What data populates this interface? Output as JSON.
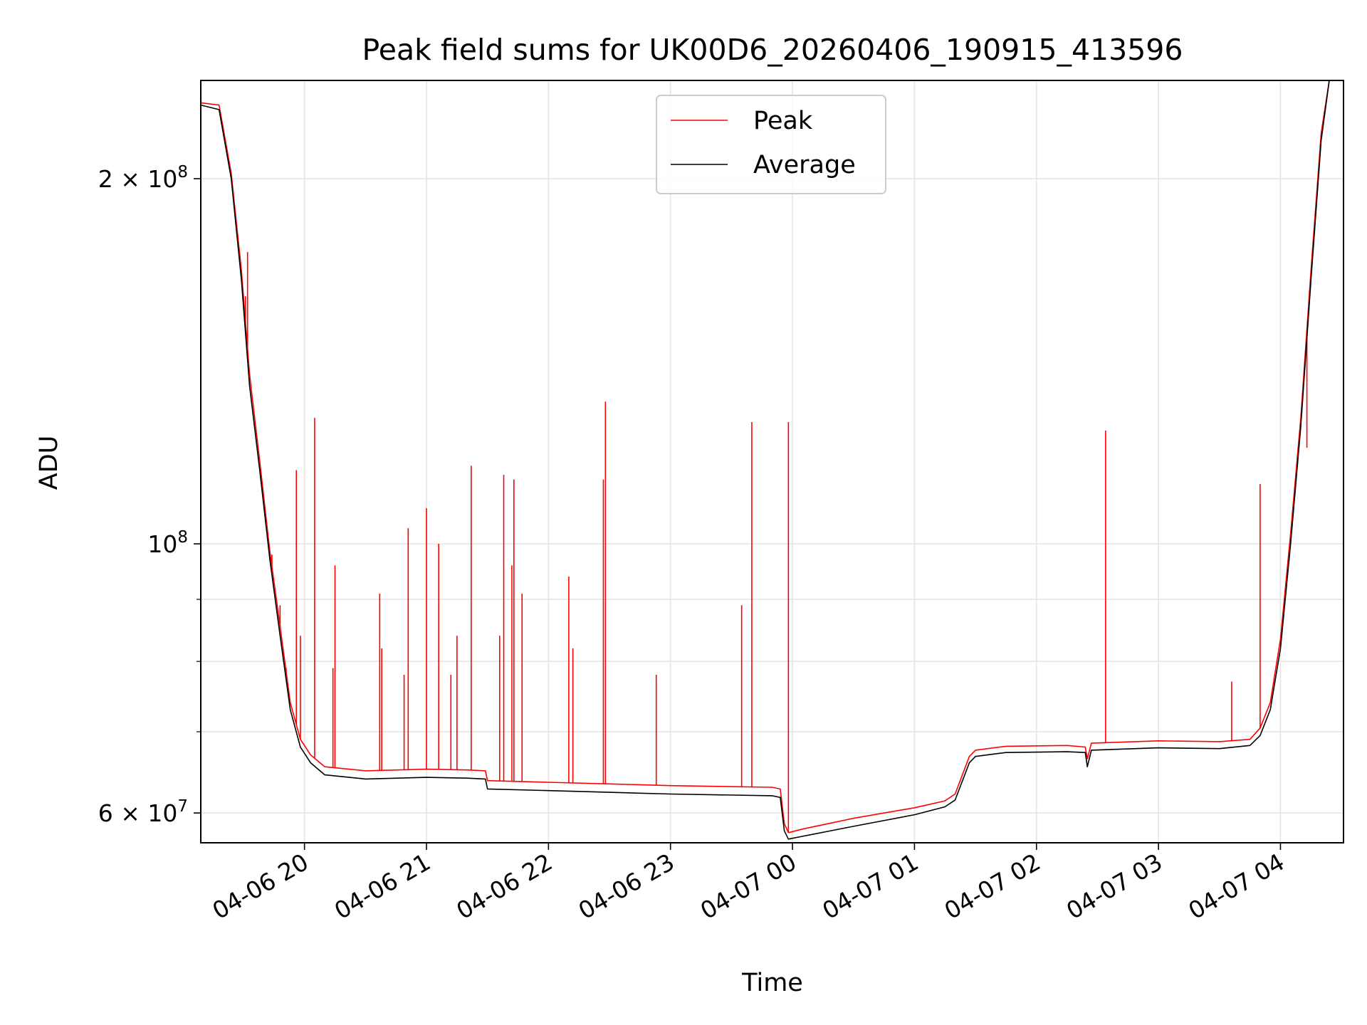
{
  "chart_data": {
    "type": "line",
    "title": "Peak field sums for UK00D6_20260406_190915_413596",
    "xlabel": "Time",
    "ylabel": "ADU",
    "yscale": "log",
    "ylim": [
      56700000,
      241000000
    ],
    "xlim": [
      "2026-04-06 19:09",
      "2026-04-07 04:31"
    ],
    "x_ticks": [
      {
        "t": "2026-04-06 20:00",
        "label": "04-06 20"
      },
      {
        "t": "2026-04-06 21:00",
        "label": "04-06 21"
      },
      {
        "t": "2026-04-06 22:00",
        "label": "04-06 22"
      },
      {
        "t": "2026-04-06 23:00",
        "label": "04-06 23"
      },
      {
        "t": "2026-04-07 00:00",
        "label": "04-07 00"
      },
      {
        "t": "2026-04-07 01:00",
        "label": "04-07 01"
      },
      {
        "t": "2026-04-07 02:00",
        "label": "04-07 02"
      },
      {
        "t": "2026-04-07 03:00",
        "label": "04-07 03"
      },
      {
        "t": "2026-04-07 04:00",
        "label": "04-07 04"
      }
    ],
    "y_major_ticks": [
      {
        "value": 60000000,
        "mantissa": "6",
        "exponent": "7"
      },
      {
        "value": 100000000,
        "mantissa": "",
        "exponent": "8"
      },
      {
        "value": 200000000,
        "mantissa": "2",
        "exponent": "8"
      }
    ],
    "y_minor_ticks": [
      70000000,
      80000000,
      90000000
    ],
    "grid": true,
    "legend_position": "upper-center",
    "series": [
      {
        "name": "Average",
        "color": "#000000",
        "points": [
          [
            "2026-04-06 19:09",
            230000000
          ],
          [
            "2026-04-06 19:18",
            228000000
          ],
          [
            "2026-04-06 19:24",
            200000000
          ],
          [
            "2026-04-06 19:29",
            165000000
          ],
          [
            "2026-04-06 19:33",
            135000000
          ],
          [
            "2026-04-06 19:38",
            115000000
          ],
          [
            "2026-04-06 19:43",
            97000000
          ],
          [
            "2026-04-06 19:48",
            84000000
          ],
          [
            "2026-04-06 19:53",
            73000000
          ],
          [
            "2026-04-06 19:58",
            68000000
          ],
          [
            "2026-04-06 20:03",
            66000000
          ],
          [
            "2026-04-06 20:10",
            64500000
          ],
          [
            "2026-04-06 20:30",
            64000000
          ],
          [
            "2026-04-06 21:00",
            64200000
          ],
          [
            "2026-04-06 21:20",
            64100000
          ],
          [
            "2026-04-06 21:29",
            64000000
          ],
          [
            "2026-04-06 21:30",
            62800000
          ],
          [
            "2026-04-06 22:00",
            62600000
          ],
          [
            "2026-04-06 22:30",
            62400000
          ],
          [
            "2026-04-06 23:00",
            62200000
          ],
          [
            "2026-04-06 23:50",
            62000000
          ],
          [
            "2026-04-06 23:54",
            61800000
          ],
          [
            "2026-04-06 23:56",
            58000000
          ],
          [
            "2026-04-06 23:58",
            57100000
          ],
          [
            "2026-04-07 00:05",
            57400000
          ],
          [
            "2026-04-07 00:30",
            58500000
          ],
          [
            "2026-04-07 01:00",
            59800000
          ],
          [
            "2026-04-07 01:15",
            60700000
          ],
          [
            "2026-04-07 01:20",
            61500000
          ],
          [
            "2026-04-07 01:27",
            66000000
          ],
          [
            "2026-04-07 01:30",
            66800000
          ],
          [
            "2026-04-07 01:45",
            67300000
          ],
          [
            "2026-04-07 02:15",
            67400000
          ],
          [
            "2026-04-07 02:24",
            67300000
          ],
          [
            "2026-04-07 02:25",
            65500000
          ],
          [
            "2026-04-07 02:27",
            67600000
          ],
          [
            "2026-04-07 03:00",
            67900000
          ],
          [
            "2026-04-07 03:30",
            67800000
          ],
          [
            "2026-04-07 03:45",
            68200000
          ],
          [
            "2026-04-07 03:50",
            69500000
          ],
          [
            "2026-04-07 03:55",
            73000000
          ],
          [
            "2026-04-07 04:00",
            82000000
          ],
          [
            "2026-04-07 04:05",
            100000000
          ],
          [
            "2026-04-07 04:10",
            125000000
          ],
          [
            "2026-04-07 04:15",
            165000000
          ],
          [
            "2026-04-07 04:20",
            215000000
          ],
          [
            "2026-04-07 04:24",
            241000000
          ]
        ]
      },
      {
        "name": "Peak",
        "color": "#ff0000",
        "points": [
          [
            "2026-04-06 19:09",
            231000000
          ],
          [
            "2026-04-06 19:18",
            230000000
          ],
          [
            "2026-04-06 19:24",
            202000000
          ],
          [
            "2026-04-06 19:29",
            168000000
          ],
          [
            "2026-04-06 19:33",
            138000000
          ],
          [
            "2026-04-06 19:38",
            117000000
          ],
          [
            "2026-04-06 19:43",
            98500000
          ],
          [
            "2026-04-06 19:48",
            85500000
          ],
          [
            "2026-04-06 19:53",
            74000000
          ],
          [
            "2026-04-06 19:58",
            69000000
          ],
          [
            "2026-04-06 20:03",
            67000000
          ],
          [
            "2026-04-06 20:10",
            65500000
          ],
          [
            "2026-04-06 20:30",
            65000000
          ],
          [
            "2026-04-06 21:00",
            65200000
          ],
          [
            "2026-04-06 21:20",
            65100000
          ],
          [
            "2026-04-06 21:29",
            65000000
          ],
          [
            "2026-04-06 21:30",
            63800000
          ],
          [
            "2026-04-06 22:00",
            63600000
          ],
          [
            "2026-04-06 22:30",
            63400000
          ],
          [
            "2026-04-06 23:00",
            63200000
          ],
          [
            "2026-04-06 23:50",
            63000000
          ],
          [
            "2026-04-06 23:54",
            62800000
          ],
          [
            "2026-04-06 23:56",
            58800000
          ],
          [
            "2026-04-06 23:58",
            57800000
          ],
          [
            "2026-04-07 00:05",
            58200000
          ],
          [
            "2026-04-07 00:30",
            59400000
          ],
          [
            "2026-04-07 01:00",
            60600000
          ],
          [
            "2026-04-07 01:15",
            61400000
          ],
          [
            "2026-04-07 01:20",
            62200000
          ],
          [
            "2026-04-07 01:27",
            66800000
          ],
          [
            "2026-04-07 01:30",
            67600000
          ],
          [
            "2026-04-07 01:45",
            68100000
          ],
          [
            "2026-04-07 02:15",
            68200000
          ],
          [
            "2026-04-07 02:24",
            68000000
          ],
          [
            "2026-04-07 02:25",
            66500000
          ],
          [
            "2026-04-07 02:27",
            68500000
          ],
          [
            "2026-04-07 03:00",
            68800000
          ],
          [
            "2026-04-07 03:30",
            68700000
          ],
          [
            "2026-04-07 03:45",
            69000000
          ],
          [
            "2026-04-07 03:50",
            70500000
          ],
          [
            "2026-04-07 03:55",
            74000000
          ],
          [
            "2026-04-07 04:00",
            83500000
          ],
          [
            "2026-04-07 04:05",
            102000000
          ],
          [
            "2026-04-07 04:10",
            127000000
          ],
          [
            "2026-04-07 04:15",
            168000000
          ],
          [
            "2026-04-07 04:20",
            218000000
          ],
          [
            "2026-04-07 04:24",
            241000000
          ]
        ],
        "spikes": [
          [
            "2026-04-06 19:31",
            160000000
          ],
          [
            "2026-04-06 19:32",
            174000000
          ],
          [
            "2026-04-06 19:44",
            98000000
          ],
          [
            "2026-04-06 19:48",
            89000000
          ],
          [
            "2026-04-06 19:51",
            79000000
          ],
          [
            "2026-04-06 19:56",
            115000000
          ],
          [
            "2026-04-06 19:58",
            84000000
          ],
          [
            "2026-04-06 20:05",
            127000000
          ],
          [
            "2026-04-06 20:14",
            79000000
          ],
          [
            "2026-04-06 20:15",
            96000000
          ],
          [
            "2026-04-06 20:37",
            91000000
          ],
          [
            "2026-04-06 20:38",
            82000000
          ],
          [
            "2026-04-06 20:49",
            78000000
          ],
          [
            "2026-04-06 20:51",
            103000000
          ],
          [
            "2026-04-06 21:00",
            107000000
          ],
          [
            "2026-04-06 21:06",
            100000000
          ],
          [
            "2026-04-06 21:12",
            78000000
          ],
          [
            "2026-04-06 21:15",
            84000000
          ],
          [
            "2026-04-06 21:22",
            116000000
          ],
          [
            "2026-04-06 21:36",
            84000000
          ],
          [
            "2026-04-06 21:38",
            114000000
          ],
          [
            "2026-04-06 21:42",
            96000000
          ],
          [
            "2026-04-06 21:43",
            113000000
          ],
          [
            "2026-04-06 21:47",
            91000000
          ],
          [
            "2026-04-06 22:10",
            94000000
          ],
          [
            "2026-04-06 22:12",
            82000000
          ],
          [
            "2026-04-06 22:27",
            113000000
          ],
          [
            "2026-04-06 22:28",
            131000000
          ],
          [
            "2026-04-06 22:53",
            78000000
          ],
          [
            "2026-04-06 23:35",
            89000000
          ],
          [
            "2026-04-06 23:40",
            126000000
          ],
          [
            "2026-04-06 23:58",
            126000000
          ],
          [
            "2026-04-07 02:34",
            124000000
          ],
          [
            "2026-04-07 03:36",
            77000000
          ],
          [
            "2026-04-07 03:50",
            112000000
          ],
          [
            "2026-04-07 04:13",
            120000000
          ]
        ]
      }
    ]
  }
}
